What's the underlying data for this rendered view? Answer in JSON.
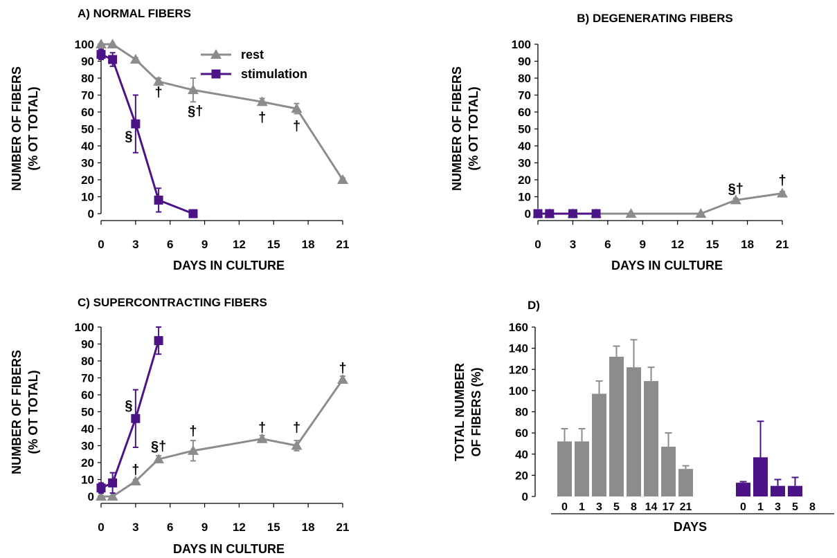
{
  "chart_data": [
    {
      "panel": "A",
      "type": "line",
      "title": "A) NORMAL FIBERS",
      "xlabel": "DAYS IN CULTURE",
      "ylabel": [
        "NUMBER OF FIBERS",
        "(% OT TOTAL)"
      ],
      "xlim": [
        0,
        21
      ],
      "ylim": [
        0,
        100
      ],
      "xticks": [
        0,
        3,
        6,
        9,
        12,
        15,
        18,
        21
      ],
      "yticks": [
        0,
        10,
        20,
        30,
        40,
        50,
        60,
        70,
        80,
        90,
        100
      ],
      "grid": false,
      "legend": {
        "position": "top-right",
        "entries": [
          "rest",
          "stimulation"
        ]
      },
      "series": [
        {
          "name": "rest",
          "color": "#8c8c8c",
          "marker": "triangle",
          "x": [
            0,
            1,
            3,
            5,
            8,
            14,
            17,
            21
          ],
          "y": [
            100,
            100,
            91,
            78,
            73,
            66,
            62,
            20
          ],
          "err": [
            0,
            0,
            1,
            2,
            7,
            2,
            3,
            1
          ]
        },
        {
          "name": "stimulation",
          "color": "#4b1386",
          "marker": "square",
          "x": [
            0,
            1,
            3,
            5,
            8
          ],
          "y": [
            94,
            91,
            53,
            8,
            0
          ],
          "err": [
            3,
            4,
            17,
            7,
            0
          ]
        }
      ],
      "annotations": [
        {
          "text": "†",
          "x": 5,
          "y": 69
        },
        {
          "text": "§†",
          "x": 8.2,
          "y": 58
        },
        {
          "text": "†",
          "x": 14,
          "y": 54
        },
        {
          "text": "†",
          "x": 17,
          "y": 49
        },
        {
          "text": "§",
          "x": 2.4,
          "y": 43
        }
      ]
    },
    {
      "panel": "B",
      "type": "line",
      "title": "B) DEGENERATING FIBERS",
      "xlabel": "DAYS IN CULTURE",
      "ylabel": [
        "NUMBER OF FIBERS",
        "(% OT TOTAL)"
      ],
      "xlim": [
        0,
        21
      ],
      "ylim": [
        0,
        100
      ],
      "xticks": [
        0,
        3,
        6,
        9,
        12,
        15,
        18,
        21
      ],
      "yticks": [
        0,
        10,
        20,
        30,
        40,
        50,
        60,
        70,
        80,
        90,
        100
      ],
      "grid": false,
      "series": [
        {
          "name": "rest",
          "color": "#8c8c8c",
          "marker": "triangle",
          "x": [
            0,
            1,
            3,
            5,
            8,
            14,
            17,
            21
          ],
          "y": [
            0,
            0,
            0,
            0,
            0,
            0,
            8,
            12
          ],
          "err": [
            0,
            0,
            0,
            0,
            0,
            0,
            1,
            1
          ]
        },
        {
          "name": "stimulation",
          "color": "#4b1386",
          "marker": "square",
          "x": [
            0,
            1,
            3,
            5
          ],
          "y": [
            0,
            0,
            0,
            0
          ],
          "err": [
            0,
            0,
            0,
            0
          ]
        }
      ],
      "annotations": [
        {
          "text": "§†",
          "x": 17,
          "y": 12
        },
        {
          "text": "†",
          "x": 21,
          "y": 17
        }
      ]
    },
    {
      "panel": "C",
      "type": "line",
      "title": "C) SUPERCONTRACTING FIBERS",
      "xlabel": "DAYS IN CULTURE",
      "ylabel": [
        "NUMBER OF FIBERS",
        "(% OT TOTAL)"
      ],
      "xlim": [
        0,
        21
      ],
      "ylim": [
        0,
        100
      ],
      "xticks": [
        0,
        3,
        6,
        9,
        12,
        15,
        18,
        21
      ],
      "yticks": [
        0,
        10,
        20,
        30,
        40,
        50,
        60,
        70,
        80,
        90,
        100
      ],
      "grid": false,
      "series": [
        {
          "name": "rest",
          "color": "#8c8c8c",
          "marker": "triangle",
          "x": [
            0,
            1,
            3,
            5,
            8,
            14,
            17,
            21
          ],
          "y": [
            0,
            0,
            9,
            22,
            27,
            34,
            30,
            69
          ],
          "err": [
            0,
            0,
            1,
            2,
            6,
            2,
            3,
            2
          ]
        },
        {
          "name": "stimulation",
          "color": "#4b1386",
          "marker": "square",
          "x": [
            0,
            1,
            3,
            5
          ],
          "y": [
            5,
            8,
            46,
            92
          ],
          "err": [
            3,
            6,
            17,
            8
          ]
        }
      ],
      "annotations": [
        {
          "text": "†",
          "x": 3,
          "y": 13
        },
        {
          "text": "§",
          "x": 2.4,
          "y": 51
        },
        {
          "text": "§†",
          "x": 5,
          "y": 27
        },
        {
          "text": "†",
          "x": 8,
          "y": 36
        },
        {
          "text": "†",
          "x": 14,
          "y": 38
        },
        {
          "text": "†",
          "x": 17,
          "y": 38
        },
        {
          "text": "†",
          "x": 21,
          "y": 73
        }
      ]
    },
    {
      "panel": "D",
      "type": "bar",
      "title": "D)",
      "xlabel": "DAYS",
      "ylabel": [
        "TOTAL NUMBER",
        "OF FIBERS (%)"
      ],
      "ylim": [
        0,
        160
      ],
      "yticks": [
        0,
        20,
        40,
        60,
        80,
        100,
        120,
        140,
        160
      ],
      "grid": false,
      "series": [
        {
          "name": "rest",
          "color": "#8c8c8c",
          "categories": [
            "0",
            "1",
            "3",
            "5",
            "8",
            "14",
            "17",
            "21"
          ],
          "values": [
            52,
            52,
            97,
            132,
            122,
            109,
            47,
            26
          ],
          "err": [
            12,
            12,
            12,
            10,
            26,
            13,
            13,
            3
          ]
        },
        {
          "name": "stimulation",
          "color": "#4b1386",
          "categories": [
            "0",
            "1",
            "3",
            "5",
            "8"
          ],
          "values": [
            13,
            37,
            10,
            10,
            0
          ],
          "err": [
            1,
            34,
            6,
            8,
            0
          ]
        }
      ]
    }
  ]
}
